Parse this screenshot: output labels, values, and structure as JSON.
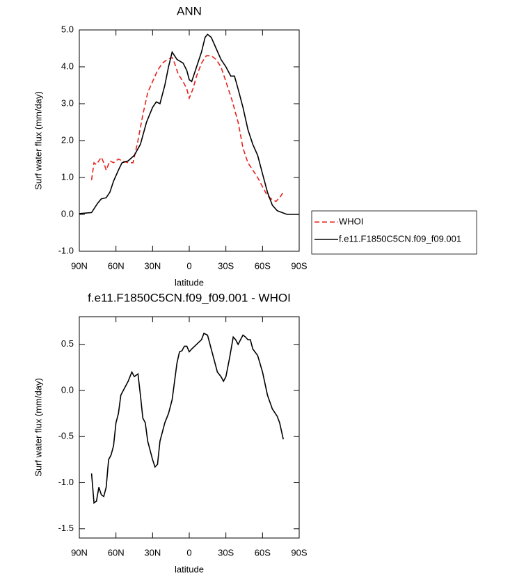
{
  "chart_data": [
    {
      "type": "line",
      "title": "ANN",
      "x_label": "latitude",
      "y_label": "Surf water flux (mm/day)",
      "xlim": [
        90,
        -90
      ],
      "xticks": [
        {
          "value": 90,
          "label": "90N"
        },
        {
          "value": 60,
          "label": "60N"
        },
        {
          "value": 30,
          "label": "30N"
        },
        0,
        {
          "value": -30,
          "label": "30S"
        },
        {
          "value": -60,
          "label": "60S"
        },
        {
          "value": -90,
          "label": "90S"
        }
      ],
      "ylim": [
        -1,
        5
      ],
      "yticks": [
        {
          "value": -1,
          "label": "-1.0"
        },
        {
          "value": 0,
          "label": "0.0"
        },
        {
          "value": 1,
          "label": "1.0"
        },
        {
          "value": 2,
          "label": "2.0"
        },
        {
          "value": 3,
          "label": "3.0"
        },
        {
          "value": 4,
          "label": "4.0"
        },
        {
          "value": 5,
          "label": "5.0"
        }
      ],
      "legend": "outside-right",
      "series": [
        {
          "name": "WHOI",
          "color": "#e8221c",
          "dash": "dashed",
          "x": [
            80,
            78,
            76,
            72,
            70,
            68,
            65,
            62,
            58,
            55,
            50,
            46,
            42,
            38,
            34,
            30,
            26,
            22,
            18,
            14,
            12,
            9,
            5,
            2,
            0,
            -3,
            -6,
            -10,
            -14,
            -18,
            -22,
            -26,
            -30,
            -35,
            -40,
            -44,
            -48,
            -52,
            -56,
            -60,
            -64,
            -68,
            -71,
            -74,
            -77
          ],
          "values": [
            0.93,
            1.4,
            1.35,
            1.55,
            1.4,
            1.2,
            1.45,
            1.4,
            1.5,
            1.45,
            1.4,
            1.4,
            2.0,
            2.7,
            3.3,
            3.6,
            3.9,
            4.1,
            4.2,
            4.25,
            4.1,
            3.8,
            3.6,
            3.4,
            3.15,
            3.4,
            3.75,
            4.1,
            4.3,
            4.3,
            4.2,
            4.0,
            3.6,
            3.1,
            2.5,
            1.8,
            1.4,
            1.2,
            1.0,
            0.75,
            0.5,
            0.4,
            0.35,
            0.45,
            0.6
          ]
        },
        {
          "name": "f.e11.F1850C5CN.f09_f09.001",
          "color": "#000000",
          "dash": "solid",
          "x": [
            90,
            80,
            75,
            72,
            68,
            65,
            62,
            58,
            55,
            50,
            45,
            40,
            35,
            30,
            27,
            24,
            20,
            17,
            14,
            10,
            5,
            2,
            0,
            -2,
            -5,
            -10,
            -13,
            -15,
            -18,
            -22,
            -26,
            -30,
            -34,
            -37,
            -40,
            -44,
            -48,
            -52,
            -56,
            -60,
            -64,
            -68,
            -72,
            -76,
            -80,
            -85,
            -90
          ],
          "values": [
            0.02,
            0.05,
            0.3,
            0.42,
            0.45,
            0.6,
            0.9,
            1.2,
            1.4,
            1.45,
            1.6,
            1.9,
            2.5,
            2.9,
            3.05,
            3.0,
            3.5,
            4.0,
            4.4,
            4.2,
            4.1,
            3.9,
            3.65,
            3.6,
            3.9,
            4.4,
            4.8,
            4.88,
            4.8,
            4.5,
            4.2,
            4.0,
            3.75,
            3.75,
            3.4,
            2.9,
            2.3,
            1.9,
            1.6,
            1.1,
            0.6,
            0.25,
            0.1,
            0.05,
            0.0,
            0.0,
            0.0
          ]
        }
      ]
    },
    {
      "type": "line",
      "title": "f.e11.F1850C5CN.f09_f09.001 - WHOI",
      "x_label": "latitude",
      "y_label": "Surf water flux (mm/day)",
      "xlim": [
        90,
        -90
      ],
      "xticks": [
        {
          "value": 90,
          "label": "90N"
        },
        {
          "value": 60,
          "label": "60N"
        },
        {
          "value": 30,
          "label": "30N"
        },
        0,
        {
          "value": -30,
          "label": "30S"
        },
        {
          "value": -60,
          "label": "60S"
        },
        {
          "value": -90,
          "label": "90S"
        }
      ],
      "ylim": [
        -1.6,
        0.8
      ],
      "yticks": [
        -1.5,
        {
          "value": -1,
          "label": "-1.0"
        },
        -0.5,
        {
          "value": 0,
          "label": "0.0"
        },
        0.5
      ],
      "series": [
        {
          "color": "#000000",
          "dash": "solid",
          "x": [
            80,
            78,
            76,
            74,
            72,
            70,
            68,
            66,
            64,
            62,
            60,
            58,
            56,
            52,
            50,
            47,
            45,
            42,
            40,
            38,
            36,
            34,
            30,
            28,
            26,
            24,
            20,
            17,
            14,
            10,
            8,
            6,
            4,
            2,
            0,
            -2,
            -6,
            -10,
            -12,
            -15,
            -18,
            -20,
            -23,
            -26,
            -28,
            -30,
            -33,
            -36,
            -38,
            -40,
            -42,
            -44,
            -46,
            -48,
            -50,
            -52,
            -56,
            -60,
            -64,
            -68,
            -72,
            -74,
            -77
          ],
          "values": [
            -0.9,
            -1.22,
            -1.2,
            -1.05,
            -1.13,
            -1.15,
            -1.05,
            -0.75,
            -0.7,
            -0.6,
            -0.35,
            -0.25,
            -0.05,
            0.05,
            0.1,
            0.2,
            0.15,
            0.18,
            -0.05,
            -0.3,
            -0.35,
            -0.55,
            -0.75,
            -0.83,
            -0.8,
            -0.55,
            -0.35,
            -0.25,
            -0.1,
            0.3,
            0.42,
            0.43,
            0.48,
            0.48,
            0.42,
            0.45,
            0.5,
            0.55,
            0.62,
            0.6,
            0.45,
            0.35,
            0.2,
            0.15,
            0.1,
            0.15,
            0.35,
            0.58,
            0.55,
            0.5,
            0.55,
            0.6,
            0.58,
            0.55,
            0.55,
            0.45,
            0.38,
            0.2,
            -0.05,
            -0.2,
            -0.28,
            -0.35,
            -0.53
          ]
        }
      ]
    }
  ]
}
